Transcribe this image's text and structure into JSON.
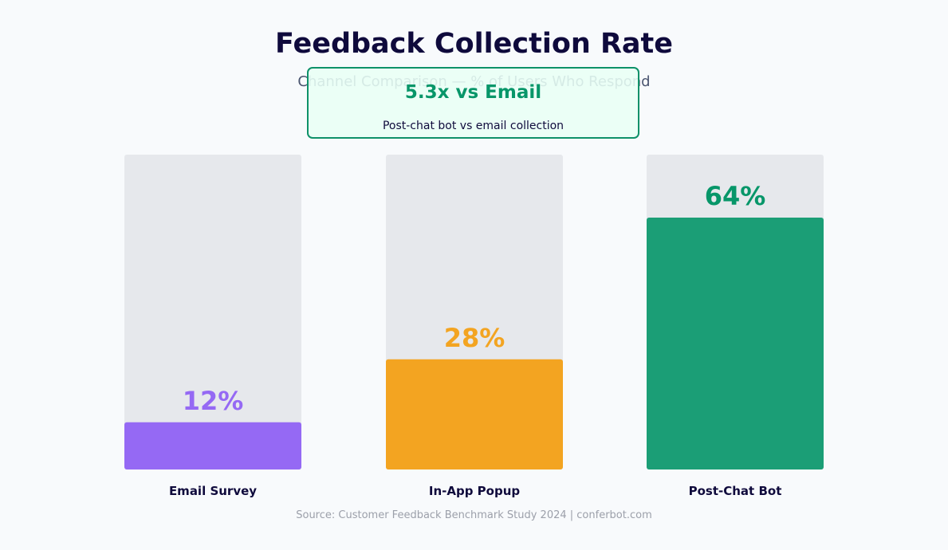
{
  "title": "Feedback Collection Rate",
  "subtitle": "Channel Comparison — % of Users Who Respond",
  "callout": {
    "headline": "5.3x vs Email",
    "detail": "Post-chat bot vs email collection"
  },
  "source": "Source: Customer Feedback Benchmark Study 2024  |  conferbot.com",
  "colors": {
    "track": "#e6e8ec",
    "email": "#9569f4",
    "inapp": "#f3a421",
    "postchat": "#1b9e76",
    "postchat_label": "#079669",
    "category_text": "#0f0a3c"
  },
  "chart_data": {
    "type": "bar",
    "categories": [
      "Email Survey",
      "In-App Popup",
      "Post-Chat Bot"
    ],
    "values": [
      12,
      28,
      64
    ],
    "value_labels": [
      "12%",
      "28%",
      "64%"
    ],
    "ylim": [
      0,
      80
    ],
    "grid": false,
    "legend": "none"
  }
}
